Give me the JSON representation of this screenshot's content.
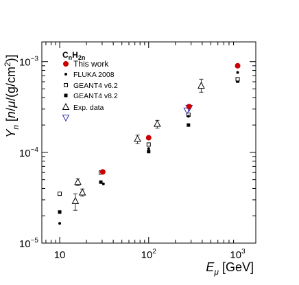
{
  "chart_data": {
    "type": "scatter",
    "title": "",
    "xlabel": "E_μ [GeV]",
    "ylabel": "Y_n [n/μ/(g/cm²)]",
    "x_scale": "log",
    "y_scale": "log",
    "xlim": [
      6.3,
      1600
    ],
    "ylim": [
      1e-05,
      0.00165
    ],
    "x_tick_labels": [
      {
        "value": 10,
        "base": "10",
        "exp": ""
      },
      {
        "value": 100,
        "base": "10",
        "exp": "2"
      },
      {
        "value": 1000,
        "base": "10",
        "exp": "3"
      }
    ],
    "y_tick_labels": [
      {
        "value": 1e-05,
        "base": "10",
        "exp": "−5"
      },
      {
        "value": 0.0001,
        "base": "10",
        "exp": "−4"
      },
      {
        "value": 0.001,
        "base": "10",
        "exp": "−3"
      }
    ],
    "grid": false,
    "legend_position": "top-left",
    "legend_title": {
      "main": "C",
      "sub1": "n",
      "mid": "H",
      "sub2": "2n"
    },
    "series": [
      {
        "name": "This work",
        "marker": "filled-circle",
        "color": "#cc0000",
        "points": [
          {
            "x": 30.5,
            "y": 6.1e-05
          },
          {
            "x": 100,
            "y": 0.000145
          },
          {
            "x": 285,
            "y": 0.00032
          },
          {
            "x": 1000,
            "y": 0.0009
          }
        ]
      },
      {
        "name": "FLUKA 2008",
        "marker": "small-dot",
        "color": "#000000",
        "points": [
          {
            "x": 10,
            "y": 1.65e-05
          },
          {
            "x": 31,
            "y": 4.5e-05
          },
          {
            "x": 100,
            "y": 0.00011
          },
          {
            "x": 280,
            "y": 0.00025
          },
          {
            "x": 1000,
            "y": 0.00076
          }
        ]
      },
      {
        "name": "GEANT4 v6.2",
        "marker": "open-square",
        "color": "#000000",
        "points": [
          {
            "x": 10,
            "y": 3.5e-05
          },
          {
            "x": 29,
            "y": 6e-05
          },
          {
            "x": 100,
            "y": 0.000122
          },
          {
            "x": 280,
            "y": 0.00026
          },
          {
            "x": 1000,
            "y": 0.00064
          }
        ]
      },
      {
        "name": "GEANT4 v8.2",
        "marker": "filled-square",
        "color": "#000000",
        "points": [
          {
            "x": 10,
            "y": 2.2e-05
          },
          {
            "x": 29,
            "y": 4.7e-05
          },
          {
            "x": 100,
            "y": 0.000102
          },
          {
            "x": 280,
            "y": 0.0002
          },
          {
            "x": 1000,
            "y": 0.00061
          }
        ]
      },
      {
        "name": "Exp. data",
        "marker": "open-triangle-up",
        "color": "#000000",
        "points": [
          {
            "x": 15,
            "y": 2.9e-05,
            "ylo": 2.3e-05,
            "yhi": 3.5e-05
          },
          {
            "x": 16,
            "y": 4.7e-05,
            "ylo": 4.3e-05,
            "yhi": 5.1e-05
          },
          {
            "x": 18,
            "y": 3.6e-05,
            "ylo": 3.3e-05,
            "yhi": 3.95e-05
          },
          {
            "x": 75,
            "y": 0.00014,
            "ylo": 0.000125,
            "yhi": 0.000155
          },
          {
            "x": 125,
            "y": 0.000205,
            "ylo": 0.000185,
            "yhi": 0.000225
          },
          {
            "x": 390,
            "y": 0.00054,
            "ylo": 0.00046,
            "yhi": 0.00064
          }
        ]
      },
      {
        "name": "",
        "marker": "open-triangle-down",
        "color": "#3333aa",
        "points": [
          {
            "x": 270,
            "y": 0.00029
          },
          {
            "x": 285,
            "y": 0.00031
          }
        ]
      }
    ]
  }
}
